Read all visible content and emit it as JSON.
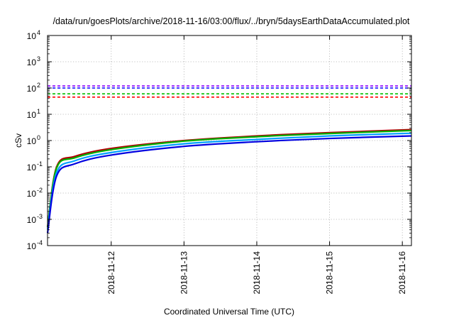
{
  "chart_data": {
    "type": "line",
    "title": "/data/run/goesPlots/archive/2018-11-16/03:00/flux/../bryn/5daysEarthDataAccumulated.plot",
    "xlabel": "Coordinated Universal Time (UTC)",
    "ylabel": "cSv",
    "y_scale": "log",
    "ylim": [
      0.0001,
      10000
    ],
    "xlim": [
      "2018-11-11 03:00",
      "2018-11-16 03:00"
    ],
    "x_ticks": [
      "2018-11-12",
      "2018-11-13",
      "2018-11-14",
      "2018-11-15",
      "2018-11-16"
    ],
    "y_ticks": [
      {
        "value": 0.0001,
        "base": "10",
        "exp": "-4"
      },
      {
        "value": 0.001,
        "base": "10",
        "exp": "-3"
      },
      {
        "value": 0.01,
        "base": "10",
        "exp": "-2"
      },
      {
        "value": 0.1,
        "base": "10",
        "exp": "-1"
      },
      {
        "value": 1,
        "base": "10",
        "exp": "0"
      },
      {
        "value": 10,
        "base": "10",
        "exp": "1"
      },
      {
        "value": 100,
        "base": "10",
        "exp": "2"
      },
      {
        "value": 1000,
        "base": "10",
        "exp": "3"
      },
      {
        "value": 10000,
        "base": "10",
        "exp": "4"
      }
    ],
    "grid": true,
    "legend": "none",
    "thresholds": [
      {
        "value": 120,
        "color": "#8b00ff",
        "style": "dashed"
      },
      {
        "value": 100,
        "color": "#0000ff",
        "style": "dashed"
      },
      {
        "value": 60,
        "color": "#00c000",
        "style": "dashed"
      },
      {
        "value": 45,
        "color": "#ff0000",
        "style": "dashed"
      }
    ],
    "series": [
      {
        "color": "#b00000",
        "x": [
          "2018-11-11 03:00",
          "2018-11-11 06:00",
          "2018-11-11 12:00",
          "2018-11-12 00:00",
          "2018-11-13 00:00",
          "2018-11-14 00:00",
          "2018-11-15 00:00",
          "2018-11-16 03:00"
        ],
        "values": [
          0.0005,
          0.1,
          0.25,
          0.5,
          1.0,
          1.5,
          2.0,
          2.6
        ]
      },
      {
        "color": "#00b000",
        "x": [
          "2018-11-11 03:00",
          "2018-11-11 06:00",
          "2018-11-11 12:00",
          "2018-11-12 00:00",
          "2018-11-13 00:00",
          "2018-11-14 00:00",
          "2018-11-15 00:00",
          "2018-11-16 03:00"
        ],
        "values": [
          0.0005,
          0.09,
          0.22,
          0.45,
          0.95,
          1.4,
          1.85,
          2.4
        ]
      },
      {
        "color": "#00a0ff",
        "x": [
          "2018-11-11 03:00",
          "2018-11-11 06:00",
          "2018-11-11 12:00",
          "2018-11-12 00:00",
          "2018-11-13 00:00",
          "2018-11-14 00:00",
          "2018-11-15 00:00",
          "2018-11-16 03:00"
        ],
        "values": [
          0.0004,
          0.06,
          0.17,
          0.35,
          0.75,
          1.1,
          1.5,
          1.9
        ]
      },
      {
        "color": "#0000e0",
        "x": [
          "2018-11-11 03:00",
          "2018-11-11 06:00",
          "2018-11-11 12:00",
          "2018-11-12 00:00",
          "2018-11-13 00:00",
          "2018-11-14 00:00",
          "2018-11-15 00:00",
          "2018-11-16 03:00"
        ],
        "values": [
          0.0003,
          0.045,
          0.13,
          0.28,
          0.6,
          0.9,
          1.2,
          1.5
        ]
      }
    ]
  }
}
